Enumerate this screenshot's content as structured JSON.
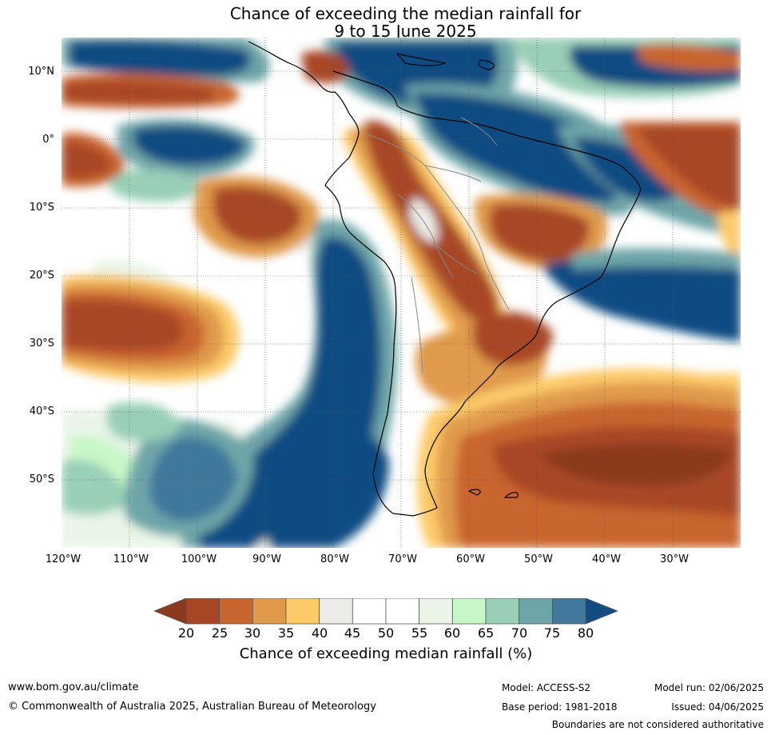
{
  "title_line1": "Chance of exceeding the median rainfall for",
  "title_line2": "9 to 15 June 2025",
  "lat_labels": [
    "10°N",
    "0°",
    "10°S",
    "20°S",
    "30°S",
    "40°S",
    "50°S"
  ],
  "lon_labels": [
    "120°W",
    "110°W",
    "100°W",
    "90°W",
    "80°W",
    "70°W",
    "60°W",
    "50°W",
    "40°W",
    "30°W"
  ],
  "colorbar": {
    "ticks": [
      "20",
      "25",
      "30",
      "35",
      "40",
      "45",
      "50",
      "55",
      "60",
      "65",
      "70",
      "75",
      "80"
    ],
    "label": "Chance of exceeding median rainfall (%)",
    "below_color": "#8b3a1f",
    "above_color": "#114c82",
    "colors": [
      "#a84726",
      "#c9652f",
      "#e09a4c",
      "#fdca6a",
      "#ecebe7",
      "#ffffff",
      "#ffffff",
      "#eaf5e8",
      "#c7f7c8",
      "#99cfb6",
      "#6ea5a8",
      "#41789c"
    ]
  },
  "footer": {
    "website": "www.bom.gov.au/climate",
    "copyright": "© Commonwealth of Australia 2025, Australian Bureau of Meteorology",
    "model": "Model: ACCESS-S2",
    "base_period": "Base period: 1981-2018",
    "model_run": "Model run: 02/06/2025",
    "issued": "Issued: 04/06/2025",
    "disclaimer": "Boundaries are not considered authoritative"
  }
}
